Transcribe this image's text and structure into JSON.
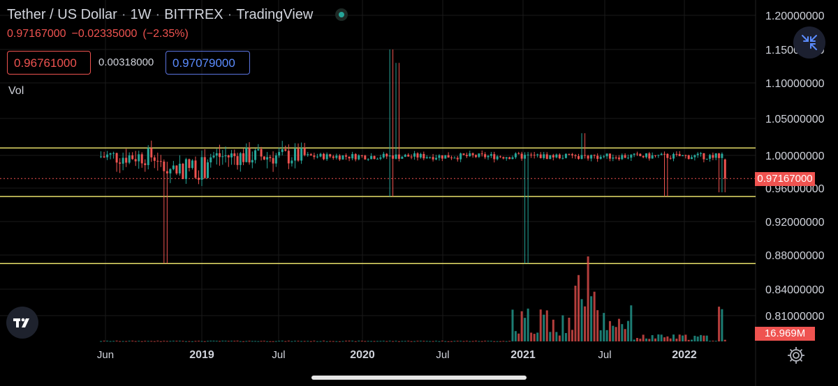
{
  "header": {
    "symbol": "Tether / US Dollar",
    "interval": "1W",
    "exchange": "BITTREX",
    "source": "TradingView",
    "separator": "·",
    "last_price": "0.97167000",
    "change": "−0.02335000",
    "change_pct": "(−2.35%)",
    "bid": "0.96761000",
    "spread": "0.00318000",
    "ask": "0.97079000",
    "volume_label": "Vol"
  },
  "current_price_tag": "0.97167000",
  "current_volume_tag": "16.969M",
  "colors": {
    "up": "#26a69a",
    "down": "#ef5350",
    "level_line": "#e8e06a",
    "background": "#000000",
    "axis_text": "#d1d4dc",
    "grid": "#1a1a1a"
  },
  "icons": [
    "live-status-dot",
    "collapse-arrows-icon",
    "tradingview-logo-icon",
    "settings-gear-icon"
  ],
  "chart_data": {
    "type": "candlestick",
    "title": "Tether / US Dollar · 1W · BITTREX",
    "y_axis": {
      "ticks": [
        1.2,
        1.15,
        1.1,
        1.05,
        1.0,
        0.96,
        0.92,
        0.88,
        0.84,
        0.81
      ],
      "tick_labels": [
        "1.20000000",
        "1.15000000",
        "1.10000000",
        "1.05000000",
        "1.00000000",
        "0.96000000",
        "0.92000000",
        "0.88000000",
        "0.84000000",
        "0.81000000"
      ]
    },
    "x_axis": {
      "ticks": [
        "2018-06",
        "2019-01",
        "2019-07",
        "2020-01",
        "2020-07",
        "2021-01",
        "2021-07",
        "2022-01"
      ],
      "tick_labels": [
        "Jun",
        "2019",
        "Jul",
        "2020",
        "Jul",
        "2021",
        "Jul",
        "2022"
      ],
      "range": [
        "2018-05-01",
        "2022-04-15"
      ]
    },
    "horizontal_lines": [
      1.01,
      0.95,
      0.87
    ],
    "current_price_line": 0.97167,
    "notable_wicks": [
      {
        "date": "2018-10-15",
        "low": 0.87
      },
      {
        "date": "2020-03-12",
        "high": 1.15,
        "low": 0.95
      },
      {
        "date": "2020-03-26",
        "high": 1.13
      },
      {
        "date": "2021-01-14",
        "low": 0.87
      },
      {
        "date": "2021-05-20",
        "high": 1.03
      },
      {
        "date": "2021-11-25",
        "low": 0.95
      },
      {
        "date": "2022-03-31",
        "low": 0.955
      }
    ],
    "last_candle": {
      "open": 0.995,
      "high": 0.996,
      "low": 0.955,
      "close": 0.97167
    },
    "volume": {
      "last": "16.969M",
      "peak_date": "2021-05-27"
    },
    "grid": true
  }
}
